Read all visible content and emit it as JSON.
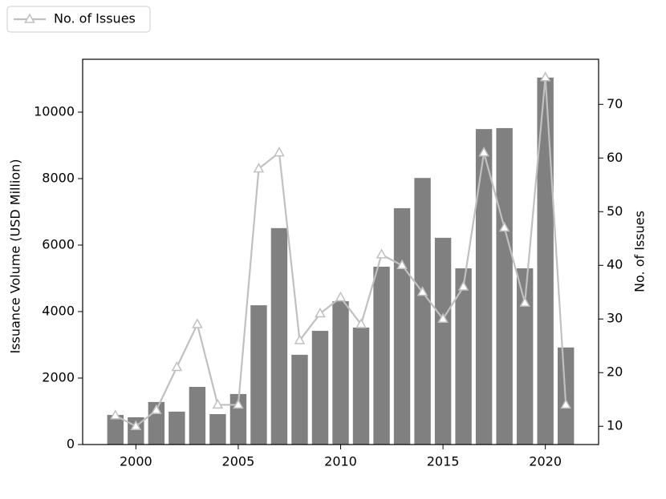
{
  "chart_data": {
    "type": "combo",
    "x": [
      1999,
      2000,
      2001,
      2002,
      2003,
      2004,
      2005,
      2006,
      2007,
      2008,
      2009,
      2010,
      2011,
      2012,
      2013,
      2014,
      2015,
      2016,
      2017,
      2018,
      2019,
      2020,
      2021
    ],
    "series": [
      {
        "type": "bar",
        "color": "#808080",
        "values": [
          890,
          820,
          1280,
          990,
          1735,
          915,
          1520,
          4190,
          6510,
          2700,
          3420,
          4310,
          3520,
          5350,
          7110,
          8020,
          6220,
          5300,
          9490,
          9520,
          5300,
          11040,
          2920
        ]
      },
      {
        "type": "line",
        "name": "No. of Issues",
        "color": "#c0c0c0",
        "axis": "y2",
        "values": [
          12,
          10,
          13,
          21,
          29,
          14,
          14,
          58,
          61,
          26,
          31,
          34,
          29,
          42,
          40,
          35,
          30,
          36,
          61,
          47,
          33,
          75,
          14
        ]
      }
    ],
    "xlim": [
      1997.4,
      2022.6
    ],
    "xticks": [
      2000,
      2005,
      2010,
      2015,
      2020
    ],
    "ylim": [
      0,
      11590
    ],
    "yticks": [
      0,
      2000,
      4000,
      6000,
      8000,
      10000
    ],
    "y2lim": [
      6.6,
      78.4
    ],
    "y2ticks": [
      10,
      20,
      30,
      40,
      50,
      60,
      70
    ],
    "ylabel": "Issuance Volume (USD Million)",
    "y2label": "No. of Issues",
    "legend": "upper left"
  }
}
